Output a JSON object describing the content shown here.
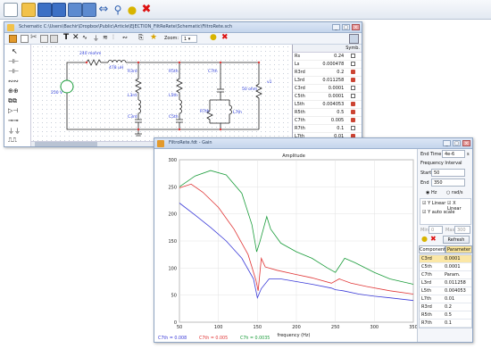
{
  "toolbar": {
    "icons": [
      "new-file-icon",
      "open-folder-icon",
      "save-icon",
      "save-as-icon",
      "print-icon",
      "print-preview-icon",
      "flip-icon",
      "zoom-icon",
      "bulb-icon",
      "close-red-icon"
    ]
  },
  "schematic": {
    "title": "Schematic C:\\Users\\Bachir\\Dropbox\\Public\\Article\\EJECTION_FiltReRete\\Schematic\\FiltroRete.sch",
    "zoom_label": "Zoom:",
    "zoom_value": "1",
    "labels": {
      "l1": "240 mohm",
      "l2": "478 uH",
      "src": "250 V",
      "r3": "R3rd",
      "l3": "L3rd",
      "c3": "C3rd",
      "r5": "R5th",
      "l5": "L5th",
      "c5": "C5th",
      "c7": "C7th",
      "r7": "R7th",
      "l7": "L7th",
      "load": "50 ohm",
      "v1": "v1"
    },
    "table_header": "Symb.",
    "table": [
      {
        "name": "Rs",
        "value": "0.24",
        "mark": "box"
      },
      {
        "name": "Ls",
        "value": "0.000478",
        "mark": "box"
      },
      {
        "name": "R3rd",
        "value": "0.2",
        "mark": "red"
      },
      {
        "name": "L3rd",
        "value": "0.011258",
        "mark": "red"
      },
      {
        "name": "C3rd",
        "value": "0.0001",
        "mark": "box"
      },
      {
        "name": "C5th",
        "value": "0.0001",
        "mark": "box"
      },
      {
        "name": "L5th",
        "value": "0.004053",
        "mark": "red"
      },
      {
        "name": "R5th",
        "value": "0.5",
        "mark": "red"
      },
      {
        "name": "C7th",
        "value": "0.005",
        "mark": "red"
      },
      {
        "name": "R7th",
        "value": "0.1",
        "mark": "box"
      },
      {
        "name": "L7th",
        "value": "0.01",
        "mark": "red"
      }
    ]
  },
  "gain": {
    "title": "FiltroRete.fdt - Gain",
    "end_time_label": "End Time",
    "end_time_value": "4e-6",
    "end_time_unit": "s",
    "freq_interval_label": "Frequency Interval",
    "start_label": "Start",
    "start_value": "50",
    "end_label": "End",
    "end_value": "350",
    "hz_label": "Hz",
    "rads_label": "rad/s",
    "ylinear_label": "Y Linear",
    "xlinear_label": "X Linear",
    "yauto_label": "Y auto scale",
    "min_label": "Min",
    "min_value": "0",
    "max_label": "Max",
    "max_value": "300",
    "refresh_label": "Refresh",
    "tabs": [
      "Components",
      "Parameter"
    ],
    "params": [
      {
        "name": "C3rd",
        "value": "0.0001"
      },
      {
        "name": "C5th",
        "value": "0.0001"
      },
      {
        "name": "C7th",
        "value": "Param."
      },
      {
        "name": "L3rd",
        "value": "0.011258"
      },
      {
        "name": "L5th",
        "value": "0.004053"
      },
      {
        "name": "L7th",
        "value": "0.01"
      },
      {
        "name": "R3rd",
        "value": "0.2"
      },
      {
        "name": "R5th",
        "value": "0.5"
      },
      {
        "name": "R7th",
        "value": "0.1"
      }
    ]
  },
  "chart_data": {
    "type": "line",
    "title": "Amplitude",
    "xlabel": "frequency (Hz)",
    "ylabel": "",
    "xlim": [
      50,
      350
    ],
    "ylim": [
      0,
      300
    ],
    "xticks": [
      50,
      100,
      150,
      200,
      250,
      300,
      350
    ],
    "yticks": [
      0,
      50,
      100,
      150,
      200,
      250,
      300
    ],
    "grid": true,
    "legend_placement": "bottom-left",
    "series": [
      {
        "name": "C7th = 0.008",
        "color": "#3a3ad8",
        "points": [
          [
            50,
            220
          ],
          [
            70,
            198
          ],
          [
            90,
            175
          ],
          [
            110,
            150
          ],
          [
            130,
            118
          ],
          [
            145,
            80
          ],
          [
            150,
            45
          ],
          [
            155,
            62
          ],
          [
            165,
            80
          ],
          [
            180,
            80
          ],
          [
            200,
            75
          ],
          [
            220,
            70
          ],
          [
            245,
            63
          ],
          [
            250,
            60
          ],
          [
            260,
            58
          ],
          [
            280,
            52
          ],
          [
            300,
            48
          ],
          [
            320,
            45
          ],
          [
            350,
            40
          ]
        ]
      },
      {
        "name": "C7th = 0.005",
        "color": "#e03535",
        "points": [
          [
            50,
            248
          ],
          [
            65,
            255
          ],
          [
            80,
            240
          ],
          [
            100,
            212
          ],
          [
            120,
            172
          ],
          [
            138,
            125
          ],
          [
            148,
            78
          ],
          [
            151,
            58
          ],
          [
            155,
            118
          ],
          [
            160,
            102
          ],
          [
            175,
            96
          ],
          [
            200,
            88
          ],
          [
            220,
            82
          ],
          [
            245,
            72
          ],
          [
            255,
            80
          ],
          [
            270,
            72
          ],
          [
            290,
            66
          ],
          [
            320,
            58
          ],
          [
            350,
            52
          ]
        ]
      },
      {
        "name": "C7h = 0.0035",
        "color": "#1a9c3a",
        "points": [
          [
            50,
            250
          ],
          [
            70,
            270
          ],
          [
            90,
            280
          ],
          [
            110,
            272
          ],
          [
            130,
            238
          ],
          [
            143,
            180
          ],
          [
            149,
            130
          ],
          [
            153,
            148
          ],
          [
            162,
            195
          ],
          [
            167,
            172
          ],
          [
            180,
            146
          ],
          [
            200,
            130
          ],
          [
            220,
            118
          ],
          [
            240,
            100
          ],
          [
            250,
            92
          ],
          [
            262,
            118
          ],
          [
            275,
            110
          ],
          [
            300,
            92
          ],
          [
            320,
            80
          ],
          [
            350,
            70
          ]
        ]
      }
    ]
  }
}
